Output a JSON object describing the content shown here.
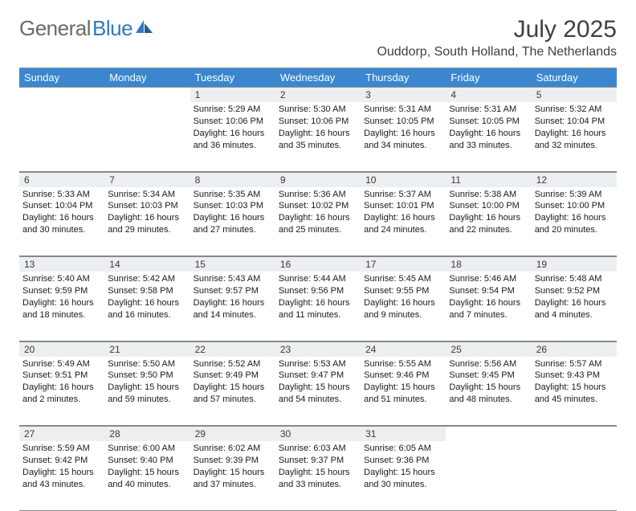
{
  "logo": {
    "text1": "General",
    "text2": "Blue"
  },
  "title": "July 2025",
  "location": "Ouddorp, South Holland, The Netherlands",
  "headers": [
    "Sunday",
    "Monday",
    "Tuesday",
    "Wednesday",
    "Thursday",
    "Friday",
    "Saturday"
  ],
  "colors": {
    "header_bg": "#3a87cf",
    "header_text": "#ffffff",
    "daynum_bg": "#eceff1",
    "border": "#888888",
    "logo_gray": "#6a6a6a",
    "logo_blue": "#2f79c2"
  },
  "weeks": [
    [
      {
        "n": "",
        "lines": []
      },
      {
        "n": "",
        "lines": []
      },
      {
        "n": "1",
        "lines": [
          "Sunrise: 5:29 AM",
          "Sunset: 10:06 PM",
          "Daylight: 16 hours",
          "and 36 minutes."
        ]
      },
      {
        "n": "2",
        "lines": [
          "Sunrise: 5:30 AM",
          "Sunset: 10:06 PM",
          "Daylight: 16 hours",
          "and 35 minutes."
        ]
      },
      {
        "n": "3",
        "lines": [
          "Sunrise: 5:31 AM",
          "Sunset: 10:05 PM",
          "Daylight: 16 hours",
          "and 34 minutes."
        ]
      },
      {
        "n": "4",
        "lines": [
          "Sunrise: 5:31 AM",
          "Sunset: 10:05 PM",
          "Daylight: 16 hours",
          "and 33 minutes."
        ]
      },
      {
        "n": "5",
        "lines": [
          "Sunrise: 5:32 AM",
          "Sunset: 10:04 PM",
          "Daylight: 16 hours",
          "and 32 minutes."
        ]
      }
    ],
    [
      {
        "n": "6",
        "lines": [
          "Sunrise: 5:33 AM",
          "Sunset: 10:04 PM",
          "Daylight: 16 hours",
          "and 30 minutes."
        ]
      },
      {
        "n": "7",
        "lines": [
          "Sunrise: 5:34 AM",
          "Sunset: 10:03 PM",
          "Daylight: 16 hours",
          "and 29 minutes."
        ]
      },
      {
        "n": "8",
        "lines": [
          "Sunrise: 5:35 AM",
          "Sunset: 10:03 PM",
          "Daylight: 16 hours",
          "and 27 minutes."
        ]
      },
      {
        "n": "9",
        "lines": [
          "Sunrise: 5:36 AM",
          "Sunset: 10:02 PM",
          "Daylight: 16 hours",
          "and 25 minutes."
        ]
      },
      {
        "n": "10",
        "lines": [
          "Sunrise: 5:37 AM",
          "Sunset: 10:01 PM",
          "Daylight: 16 hours",
          "and 24 minutes."
        ]
      },
      {
        "n": "11",
        "lines": [
          "Sunrise: 5:38 AM",
          "Sunset: 10:00 PM",
          "Daylight: 16 hours",
          "and 22 minutes."
        ]
      },
      {
        "n": "12",
        "lines": [
          "Sunrise: 5:39 AM",
          "Sunset: 10:00 PM",
          "Daylight: 16 hours",
          "and 20 minutes."
        ]
      }
    ],
    [
      {
        "n": "13",
        "lines": [
          "Sunrise: 5:40 AM",
          "Sunset: 9:59 PM",
          "Daylight: 16 hours",
          "and 18 minutes."
        ]
      },
      {
        "n": "14",
        "lines": [
          "Sunrise: 5:42 AM",
          "Sunset: 9:58 PM",
          "Daylight: 16 hours",
          "and 16 minutes."
        ]
      },
      {
        "n": "15",
        "lines": [
          "Sunrise: 5:43 AM",
          "Sunset: 9:57 PM",
          "Daylight: 16 hours",
          "and 14 minutes."
        ]
      },
      {
        "n": "16",
        "lines": [
          "Sunrise: 5:44 AM",
          "Sunset: 9:56 PM",
          "Daylight: 16 hours",
          "and 11 minutes."
        ]
      },
      {
        "n": "17",
        "lines": [
          "Sunrise: 5:45 AM",
          "Sunset: 9:55 PM",
          "Daylight: 16 hours",
          "and 9 minutes."
        ]
      },
      {
        "n": "18",
        "lines": [
          "Sunrise: 5:46 AM",
          "Sunset: 9:54 PM",
          "Daylight: 16 hours",
          "and 7 minutes."
        ]
      },
      {
        "n": "19",
        "lines": [
          "Sunrise: 5:48 AM",
          "Sunset: 9:52 PM",
          "Daylight: 16 hours",
          "and 4 minutes."
        ]
      }
    ],
    [
      {
        "n": "20",
        "lines": [
          "Sunrise: 5:49 AM",
          "Sunset: 9:51 PM",
          "Daylight: 16 hours",
          "and 2 minutes."
        ]
      },
      {
        "n": "21",
        "lines": [
          "Sunrise: 5:50 AM",
          "Sunset: 9:50 PM",
          "Daylight: 15 hours",
          "and 59 minutes."
        ]
      },
      {
        "n": "22",
        "lines": [
          "Sunrise: 5:52 AM",
          "Sunset: 9:49 PM",
          "Daylight: 15 hours",
          "and 57 minutes."
        ]
      },
      {
        "n": "23",
        "lines": [
          "Sunrise: 5:53 AM",
          "Sunset: 9:47 PM",
          "Daylight: 15 hours",
          "and 54 minutes."
        ]
      },
      {
        "n": "24",
        "lines": [
          "Sunrise: 5:55 AM",
          "Sunset: 9:46 PM",
          "Daylight: 15 hours",
          "and 51 minutes."
        ]
      },
      {
        "n": "25",
        "lines": [
          "Sunrise: 5:56 AM",
          "Sunset: 9:45 PM",
          "Daylight: 15 hours",
          "and 48 minutes."
        ]
      },
      {
        "n": "26",
        "lines": [
          "Sunrise: 5:57 AM",
          "Sunset: 9:43 PM",
          "Daylight: 15 hours",
          "and 45 minutes."
        ]
      }
    ],
    [
      {
        "n": "27",
        "lines": [
          "Sunrise: 5:59 AM",
          "Sunset: 9:42 PM",
          "Daylight: 15 hours",
          "and 43 minutes."
        ]
      },
      {
        "n": "28",
        "lines": [
          "Sunrise: 6:00 AM",
          "Sunset: 9:40 PM",
          "Daylight: 15 hours",
          "and 40 minutes."
        ]
      },
      {
        "n": "29",
        "lines": [
          "Sunrise: 6:02 AM",
          "Sunset: 9:39 PM",
          "Daylight: 15 hours",
          "and 37 minutes."
        ]
      },
      {
        "n": "30",
        "lines": [
          "Sunrise: 6:03 AM",
          "Sunset: 9:37 PM",
          "Daylight: 15 hours",
          "and 33 minutes."
        ]
      },
      {
        "n": "31",
        "lines": [
          "Sunrise: 6:05 AM",
          "Sunset: 9:36 PM",
          "Daylight: 15 hours",
          "and 30 minutes."
        ]
      },
      {
        "n": "",
        "lines": []
      },
      {
        "n": "",
        "lines": []
      }
    ]
  ]
}
